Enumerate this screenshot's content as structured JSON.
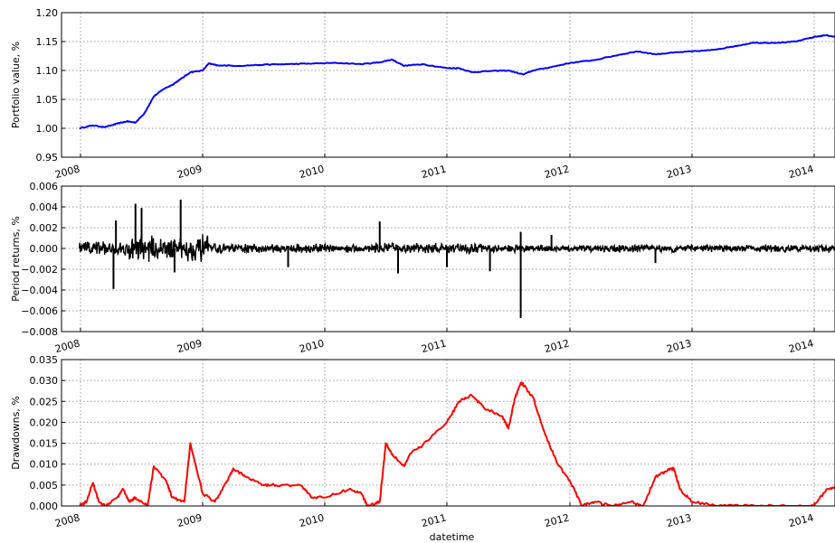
{
  "chart_data": [
    {
      "type": "line",
      "ylabel": "Portfolio value, %",
      "xlabel": "",
      "ylim": [
        0.95,
        1.2
      ],
      "yticks": [
        "0.95",
        "1.00",
        "1.05",
        "1.10",
        "1.15",
        "1.20"
      ],
      "xticks": [
        "2008",
        "2009",
        "2010",
        "2011",
        "2012",
        "2013",
        "2014"
      ],
      "grid": true,
      "color": "#0000ff",
      "series": [
        {
          "x": [
            2007.99,
            2008.1,
            2008.2,
            2008.3,
            2008.38,
            2008.45,
            2008.52,
            2008.6,
            2008.68,
            2008.75,
            2008.82,
            2008.9,
            2009.0,
            2009.05,
            2009.12,
            2009.3,
            2009.5,
            2009.7,
            2009.9,
            2010.1,
            2010.3,
            2010.45,
            2010.55,
            2010.65,
            2010.8,
            2011.0,
            2011.1,
            2011.2,
            2011.35,
            2011.5,
            2011.62,
            2011.7,
            2011.85,
            2012.0,
            2012.2,
            2012.4,
            2012.55,
            2012.7,
            2012.85,
            2013.0,
            2013.15,
            2013.3,
            2013.5,
            2013.7,
            2013.85,
            2014.0,
            2014.1,
            2014.2
          ],
          "y": [
            1.0,
            1.005,
            1.002,
            1.008,
            1.012,
            1.01,
            1.025,
            1.055,
            1.068,
            1.075,
            1.085,
            1.097,
            1.1,
            1.112,
            1.109,
            1.108,
            1.11,
            1.111,
            1.112,
            1.113,
            1.111,
            1.114,
            1.119,
            1.108,
            1.111,
            1.104,
            1.104,
            1.097,
            1.099,
            1.1,
            1.093,
            1.1,
            1.106,
            1.113,
            1.118,
            1.127,
            1.133,
            1.128,
            1.131,
            1.133,
            1.135,
            1.14,
            1.148,
            1.148,
            1.15,
            1.158,
            1.161,
            1.157
          ]
        }
      ]
    },
    {
      "type": "line",
      "ylabel": "Period returns, %",
      "xlabel": "",
      "ylim": [
        -0.008,
        0.006
      ],
      "yticks": [
        "−0.008",
        "−0.006",
        "−0.004",
        "−0.002",
        "0.000",
        "0.002",
        "0.004",
        "0.006"
      ],
      "xticks": [
        "2008",
        "2009",
        "2010",
        "2011",
        "2012",
        "2013",
        "2014"
      ],
      "grid": true,
      "color": "#000000",
      "noise": [
        {
          "from": 2007.99,
          "to": 2008.4,
          "amp": 0.0008
        },
        {
          "from": 2008.4,
          "to": 2009.05,
          "amp": 0.0014
        },
        {
          "from": 2009.05,
          "to": 2010.4,
          "amp": 0.0005
        },
        {
          "from": 2010.4,
          "to": 2011.3,
          "amp": 0.0006
        },
        {
          "from": 2011.3,
          "to": 2014.2,
          "amp": 0.0004
        }
      ],
      "spikes": [
        {
          "x": 2008.27,
          "y": -0.0039
        },
        {
          "x": 2008.29,
          "y": 0.0027
        },
        {
          "x": 2008.45,
          "y": 0.0043
        },
        {
          "x": 2008.5,
          "y": 0.0039
        },
        {
          "x": 2008.82,
          "y": 0.0047
        },
        {
          "x": 2008.77,
          "y": -0.0023
        },
        {
          "x": 2009.7,
          "y": -0.0018
        },
        {
          "x": 2010.45,
          "y": 0.0026
        },
        {
          "x": 2010.6,
          "y": -0.0024
        },
        {
          "x": 2011.0,
          "y": -0.0018
        },
        {
          "x": 2011.35,
          "y": -0.0022
        },
        {
          "x": 2011.6,
          "y": -0.0067
        },
        {
          "x": 2011.6,
          "y": 0.0016
        },
        {
          "x": 2011.85,
          "y": 0.0013
        },
        {
          "x": 2012.7,
          "y": -0.0014
        }
      ]
    },
    {
      "type": "line",
      "ylabel": "Drawdowns, %",
      "xlabel": "datetime",
      "ylim": [
        0.0,
        0.035
      ],
      "yticks": [
        "0.000",
        "0.005",
        "0.010",
        "0.015",
        "0.020",
        "0.025",
        "0.030",
        "0.035"
      ],
      "xticks": [
        "2008",
        "2009",
        "2010",
        "2011",
        "2012",
        "2013",
        "2014"
      ],
      "grid": true,
      "color": "#ff0000",
      "series": [
        {
          "x": [
            2007.99,
            2008.05,
            2008.1,
            2008.15,
            2008.2,
            2008.3,
            2008.35,
            2008.4,
            2008.45,
            2008.55,
            2008.6,
            2008.7,
            2008.75,
            2008.85,
            2008.9,
            2009.0,
            2009.1,
            2009.2,
            2009.25,
            2009.35,
            2009.5,
            2009.6,
            2009.8,
            2009.9,
            2010.0,
            2010.2,
            2010.3,
            2010.35,
            2010.45,
            2010.5,
            2010.55,
            2010.65,
            2010.7,
            2010.8,
            2011.0,
            2011.1,
            2011.2,
            2011.3,
            2011.45,
            2011.5,
            2011.55,
            2011.6,
            2011.62,
            2011.7,
            2011.8,
            2011.9,
            2012.0,
            2012.1,
            2012.2,
            2012.35,
            2012.5,
            2012.6,
            2012.7,
            2012.8,
            2012.85,
            2012.9,
            2013.0,
            2013.2,
            2013.4,
            2013.6,
            2013.8,
            2014.0,
            2014.1,
            2014.2
          ],
          "y": [
            0.0,
            0.001,
            0.0055,
            0.001,
            0.0,
            0.002,
            0.004,
            0.001,
            0.002,
            0.0,
            0.0095,
            0.006,
            0.002,
            0.001,
            0.015,
            0.003,
            0.001,
            0.006,
            0.009,
            0.007,
            0.005,
            0.005,
            0.005,
            0.002,
            0.002,
            0.004,
            0.003,
            0.0,
            0.001,
            0.015,
            0.0125,
            0.0095,
            0.0125,
            0.0145,
            0.02,
            0.025,
            0.0265,
            0.0235,
            0.0215,
            0.0185,
            0.0255,
            0.0295,
            0.029,
            0.026,
            0.017,
            0.01,
            0.006,
            0.0,
            0.001,
            0.0,
            0.001,
            0.0,
            0.007,
            0.0085,
            0.009,
            0.004,
            0.001,
            0.0,
            0.0,
            0.0,
            0.0,
            0.0,
            0.004,
            0.0045
          ]
        }
      ]
    }
  ]
}
